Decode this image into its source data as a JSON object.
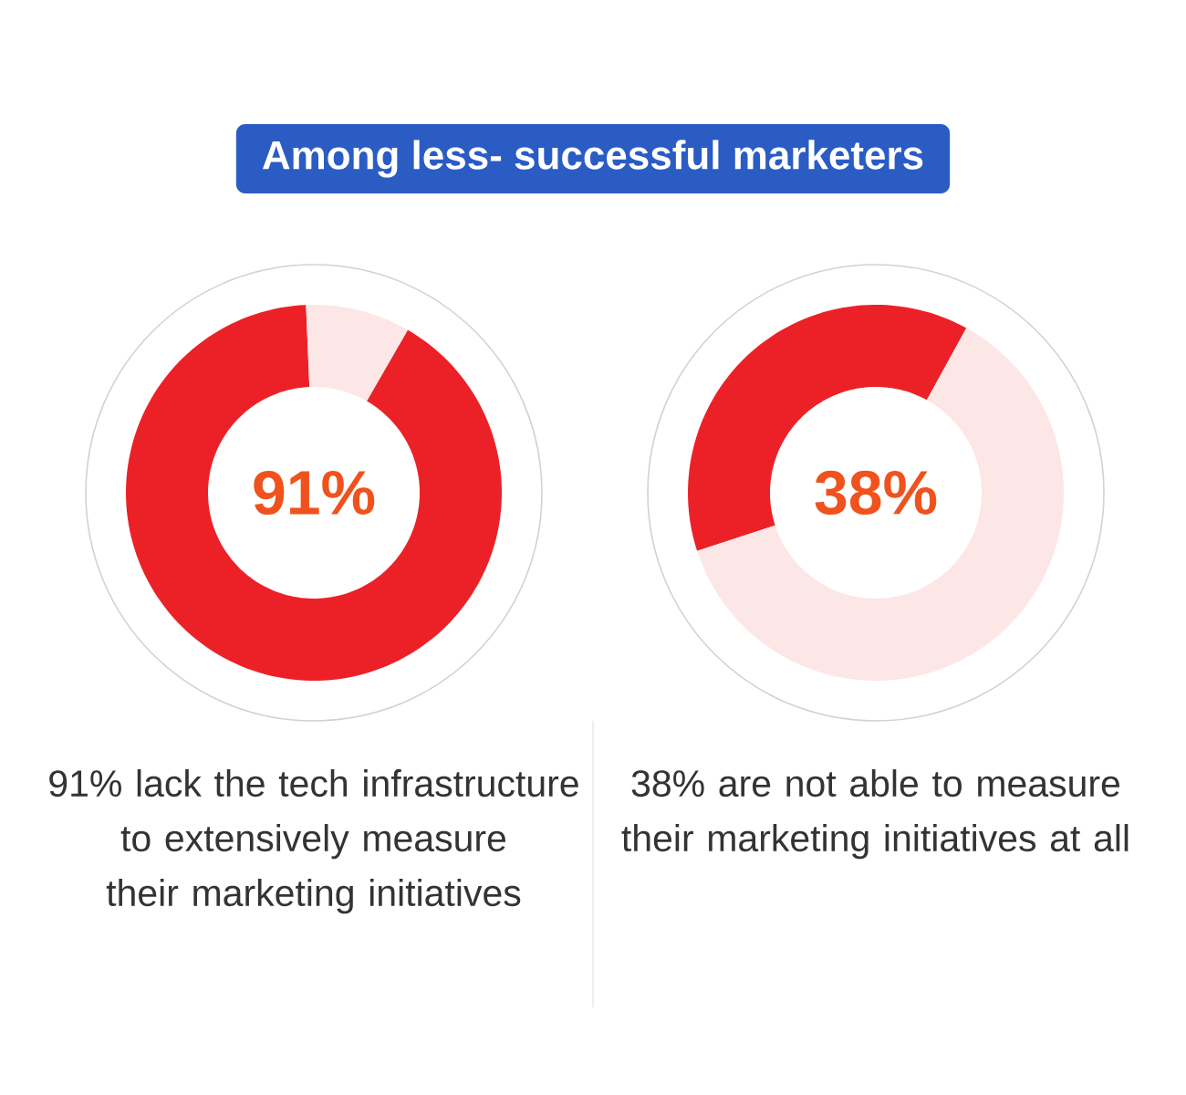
{
  "chart_data": [
    {
      "type": "donut",
      "title": "Among less- successful marketers",
      "categories": [
        null,
        null
      ],
      "values": [
        91,
        9
      ],
      "colors": [
        "#ec2127",
        "#fde6e6"
      ],
      "value_labels": [
        "91%",
        null
      ],
      "annotations": [
        "91% lack the tech infrastructure to extensively measure their marketing initiatives"
      ]
    },
    {
      "type": "donut",
      "categories": [
        null,
        null
      ],
      "values": [
        38,
        62
      ],
      "colors": [
        "#ec2127",
        "#fde6e6"
      ],
      "value_labels": [
        "38%",
        null
      ],
      "annotations": [
        "38% are not able to measure their marketing initiatives at all"
      ]
    }
  ]
}
